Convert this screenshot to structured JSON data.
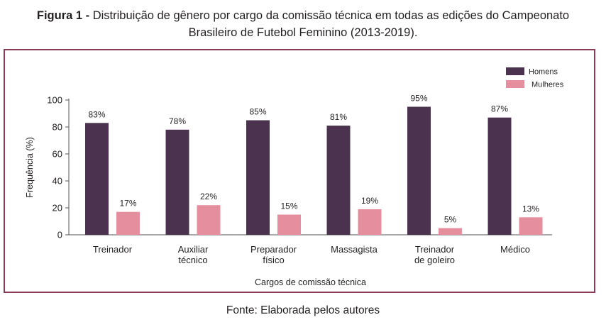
{
  "figure": {
    "label": "Figura 1 - ",
    "caption_line1": "Distribuição de gênero por cargo da comissão técnica em todas as edições do Campeonato",
    "caption_line2": "Brasileiro de Futebol Feminino (2013-2019).",
    "source": "Fonte: Elaborada pelos autores"
  },
  "chart_data": {
    "type": "bar",
    "categories": [
      [
        "Treinador"
      ],
      [
        "Auxiliar",
        "técnico"
      ],
      [
        "Preparador",
        "físico"
      ],
      [
        "Massagista"
      ],
      [
        "Treinador",
        "de goleiro"
      ],
      [
        "Médico"
      ]
    ],
    "series": [
      {
        "name": "Homens",
        "color": "#4b3350",
        "values": [
          83,
          78,
          85,
          81,
          95,
          87
        ],
        "labels": [
          "83%",
          "78%",
          "85%",
          "81%",
          "95%",
          "87%"
        ]
      },
      {
        "name": "Mulheres",
        "color": "#e48e9e",
        "values": [
          17,
          22,
          15,
          19,
          5,
          13
        ],
        "labels": [
          "17%",
          "22%",
          "15%",
          "19%",
          "5%",
          "13%"
        ]
      }
    ],
    "xlabel": "Cargos de comissão técnica",
    "ylabel": "Frequência (%)",
    "ylim": [
      0,
      100
    ],
    "yticks": [
      0,
      20,
      40,
      60,
      80,
      100
    ],
    "grid": false,
    "legend_position": "top-right"
  }
}
